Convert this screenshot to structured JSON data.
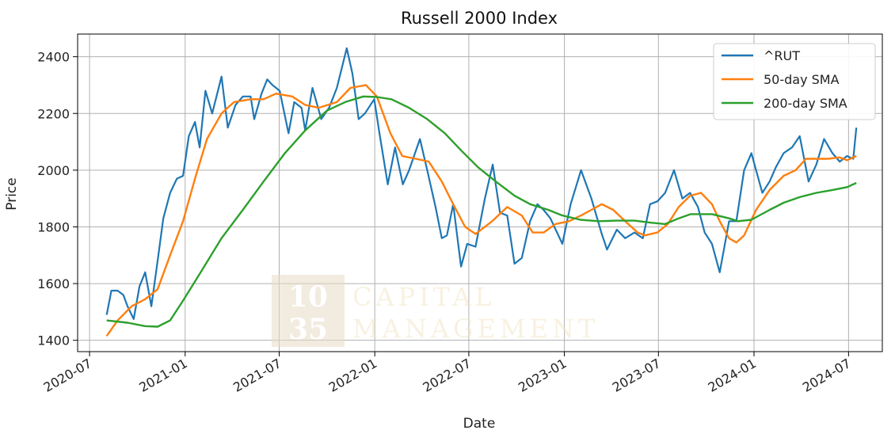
{
  "chart_data": {
    "type": "line",
    "title": "Russell 2000 Index",
    "xlabel": "Date",
    "ylabel": "Price",
    "ylim": [
      1360,
      2480
    ],
    "xlim": [
      "2020-06-08",
      "2024-09-04"
    ],
    "y_ticks": [
      1400,
      1600,
      1800,
      2000,
      2200,
      2400
    ],
    "x_ticks": [
      "2020-07",
      "2021-01",
      "2021-07",
      "2022-01",
      "2022-07",
      "2023-01",
      "2023-07",
      "2024-01",
      "2024-07"
    ],
    "grid": true,
    "legend_position": "top-right",
    "series": [
      {
        "name": "^RUT",
        "color": "#1f77b4",
        "points": [
          [
            "2020-08-03",
            1490
          ],
          [
            "2020-08-12",
            1575
          ],
          [
            "2020-08-24",
            1575
          ],
          [
            "2020-09-04",
            1560
          ],
          [
            "2020-09-12",
            1520
          ],
          [
            "2020-09-24",
            1475
          ],
          [
            "2020-10-05",
            1590
          ],
          [
            "2020-10-16",
            1640
          ],
          [
            "2020-10-28",
            1520
          ],
          [
            "2020-11-09",
            1680
          ],
          [
            "2020-11-20",
            1830
          ],
          [
            "2020-12-03",
            1920
          ],
          [
            "2020-12-16",
            1970
          ],
          [
            "2020-12-28",
            1980
          ],
          [
            "2021-01-08",
            2120
          ],
          [
            "2021-01-20",
            2170
          ],
          [
            "2021-01-29",
            2080
          ],
          [
            "2021-02-09",
            2280
          ],
          [
            "2021-02-22",
            2200
          ],
          [
            "2021-03-12",
            2330
          ],
          [
            "2021-03-24",
            2150
          ],
          [
            "2021-04-08",
            2230
          ],
          [
            "2021-04-22",
            2260
          ],
          [
            "2021-05-07",
            2260
          ],
          [
            "2021-05-14",
            2180
          ],
          [
            "2021-05-28",
            2270
          ],
          [
            "2021-06-08",
            2320
          ],
          [
            "2021-06-18",
            2300
          ],
          [
            "2021-07-02",
            2280
          ],
          [
            "2021-07-19",
            2130
          ],
          [
            "2021-07-30",
            2240
          ],
          [
            "2021-08-13",
            2220
          ],
          [
            "2021-08-20",
            2140
          ],
          [
            "2021-09-03",
            2290
          ],
          [
            "2021-09-20",
            2180
          ],
          [
            "2021-10-05",
            2220
          ],
          [
            "2021-10-20",
            2290
          ],
          [
            "2021-11-08",
            2430
          ],
          [
            "2021-11-19",
            2340
          ],
          [
            "2021-12-01",
            2180
          ],
          [
            "2021-12-13",
            2200
          ],
          [
            "2021-12-31",
            2250
          ],
          [
            "2022-01-10",
            2130
          ],
          [
            "2022-01-26",
            1950
          ],
          [
            "2022-02-09",
            2080
          ],
          [
            "2022-02-24",
            1950
          ],
          [
            "2022-03-08",
            2000
          ],
          [
            "2022-03-29",
            2110
          ],
          [
            "2022-04-12",
            2000
          ],
          [
            "2022-04-28",
            1870
          ],
          [
            "2022-05-10",
            1760
          ],
          [
            "2022-05-20",
            1770
          ],
          [
            "2022-06-01",
            1880
          ],
          [
            "2022-06-16",
            1660
          ],
          [
            "2022-06-28",
            1740
          ],
          [
            "2022-07-14",
            1730
          ],
          [
            "2022-08-01",
            1900
          ],
          [
            "2022-08-16",
            2020
          ],
          [
            "2022-08-30",
            1850
          ],
          [
            "2022-09-13",
            1840
          ],
          [
            "2022-09-27",
            1670
          ],
          [
            "2022-10-11",
            1690
          ],
          [
            "2022-10-27",
            1820
          ],
          [
            "2022-11-10",
            1880
          ],
          [
            "2022-11-22",
            1860
          ],
          [
            "2022-12-05",
            1830
          ],
          [
            "2022-12-28",
            1740
          ],
          [
            "2023-01-13",
            1880
          ],
          [
            "2023-02-02",
            2000
          ],
          [
            "2023-02-22",
            1900
          ],
          [
            "2023-03-13",
            1780
          ],
          [
            "2023-03-24",
            1720
          ],
          [
            "2023-04-12",
            1790
          ],
          [
            "2023-04-28",
            1760
          ],
          [
            "2023-05-16",
            1780
          ],
          [
            "2023-06-01",
            1760
          ],
          [
            "2023-06-15",
            1880
          ],
          [
            "2023-06-29",
            1890
          ],
          [
            "2023-07-14",
            1920
          ],
          [
            "2023-07-31",
            2000
          ],
          [
            "2023-08-16",
            1900
          ],
          [
            "2023-08-31",
            1920
          ],
          [
            "2023-09-15",
            1870
          ],
          [
            "2023-09-28",
            1780
          ],
          [
            "2023-10-12",
            1740
          ],
          [
            "2023-10-27",
            1640
          ],
          [
            "2023-11-14",
            1820
          ],
          [
            "2023-11-28",
            1820
          ],
          [
            "2023-12-13",
            2000
          ],
          [
            "2023-12-27",
            2060
          ],
          [
            "2024-01-17",
            1920
          ],
          [
            "2024-01-31",
            1960
          ],
          [
            "2024-02-12",
            2010
          ],
          [
            "2024-02-27",
            2060
          ],
          [
            "2024-03-14",
            2080
          ],
          [
            "2024-03-29",
            2120
          ],
          [
            "2024-04-15",
            1960
          ],
          [
            "2024-04-30",
            2020
          ],
          [
            "2024-05-15",
            2110
          ],
          [
            "2024-05-31",
            2060
          ],
          [
            "2024-06-14",
            2030
          ],
          [
            "2024-06-28",
            2050
          ],
          [
            "2024-07-10",
            2040
          ],
          [
            "2024-07-16",
            2150
          ]
        ]
      },
      {
        "name": "50-day SMA",
        "color": "#ff7f0e",
        "points": [
          [
            "2020-08-03",
            1415
          ],
          [
            "2020-08-24",
            1470
          ],
          [
            "2020-09-20",
            1520
          ],
          [
            "2020-10-16",
            1545
          ],
          [
            "2020-11-09",
            1580
          ],
          [
            "2020-12-03",
            1700
          ],
          [
            "2020-12-28",
            1820
          ],
          [
            "2021-01-20",
            1970
          ],
          [
            "2021-02-12",
            2110
          ],
          [
            "2021-03-12",
            2200
          ],
          [
            "2021-04-05",
            2240
          ],
          [
            "2021-05-07",
            2250
          ],
          [
            "2021-06-01",
            2250
          ],
          [
            "2021-06-25",
            2270
          ],
          [
            "2021-07-26",
            2260
          ],
          [
            "2021-08-20",
            2230
          ],
          [
            "2021-09-15",
            2220
          ],
          [
            "2021-10-20",
            2240
          ],
          [
            "2021-11-15",
            2290
          ],
          [
            "2021-12-15",
            2300
          ],
          [
            "2022-01-05",
            2260
          ],
          [
            "2022-01-31",
            2130
          ],
          [
            "2022-02-23",
            2050
          ],
          [
            "2022-03-21",
            2040
          ],
          [
            "2022-04-15",
            2030
          ],
          [
            "2022-05-10",
            1960
          ],
          [
            "2022-06-01",
            1880
          ],
          [
            "2022-06-24",
            1800
          ],
          [
            "2022-07-14",
            1775
          ],
          [
            "2022-08-15",
            1820
          ],
          [
            "2022-09-13",
            1870
          ],
          [
            "2022-10-11",
            1840
          ],
          [
            "2022-11-01",
            1780
          ],
          [
            "2022-11-22",
            1780
          ],
          [
            "2022-12-15",
            1810
          ],
          [
            "2023-01-10",
            1820
          ],
          [
            "2023-02-02",
            1840
          ],
          [
            "2023-02-22",
            1860
          ],
          [
            "2023-03-14",
            1880
          ],
          [
            "2023-04-05",
            1860
          ],
          [
            "2023-04-28",
            1820
          ],
          [
            "2023-05-22",
            1780
          ],
          [
            "2023-06-05",
            1770
          ],
          [
            "2023-06-29",
            1780
          ],
          [
            "2023-07-19",
            1810
          ],
          [
            "2023-08-09",
            1870
          ],
          [
            "2023-08-31",
            1910
          ],
          [
            "2023-09-21",
            1920
          ],
          [
            "2023-10-12",
            1880
          ],
          [
            "2023-10-27",
            1820
          ],
          [
            "2023-11-14",
            1760
          ],
          [
            "2023-11-28",
            1745
          ],
          [
            "2023-12-13",
            1770
          ],
          [
            "2024-01-05",
            1860
          ],
          [
            "2024-01-31",
            1930
          ],
          [
            "2024-02-27",
            1980
          ],
          [
            "2024-03-21",
            2000
          ],
          [
            "2024-04-10",
            2040
          ],
          [
            "2024-04-30",
            2040
          ],
          [
            "2024-05-22",
            2040
          ],
          [
            "2024-06-14",
            2045
          ],
          [
            "2024-06-28",
            2035
          ],
          [
            "2024-07-16",
            2050
          ]
        ]
      },
      {
        "name": "200-day SMA",
        "color": "#2ca02c",
        "points": [
          [
            "2020-08-03",
            1470
          ],
          [
            "2020-09-12",
            1462
          ],
          [
            "2020-10-16",
            1450
          ],
          [
            "2020-11-09",
            1448
          ],
          [
            "2020-12-03",
            1470
          ],
          [
            "2020-12-28",
            1540
          ],
          [
            "2021-01-31",
            1640
          ],
          [
            "2021-03-12",
            1760
          ],
          [
            "2021-04-22",
            1860
          ],
          [
            "2021-06-01",
            1960
          ],
          [
            "2021-07-12",
            2060
          ],
          [
            "2021-08-20",
            2140
          ],
          [
            "2021-10-01",
            2210
          ],
          [
            "2021-11-05",
            2240
          ],
          [
            "2021-12-10",
            2260
          ],
          [
            "2022-01-05",
            2258
          ],
          [
            "2022-02-02",
            2250
          ],
          [
            "2022-03-08",
            2220
          ],
          [
            "2022-04-12",
            2180
          ],
          [
            "2022-05-16",
            2130
          ],
          [
            "2022-06-16",
            2070
          ],
          [
            "2022-07-19",
            2010
          ],
          [
            "2022-08-22",
            1960
          ],
          [
            "2022-09-27",
            1910
          ],
          [
            "2022-10-27",
            1880
          ],
          [
            "2022-12-01",
            1860
          ],
          [
            "2022-12-28",
            1840
          ],
          [
            "2023-02-01",
            1825
          ],
          [
            "2023-03-08",
            1820
          ],
          [
            "2023-04-12",
            1822
          ],
          [
            "2023-05-16",
            1822
          ],
          [
            "2023-06-15",
            1815
          ],
          [
            "2023-07-14",
            1810
          ],
          [
            "2023-08-09",
            1830
          ],
          [
            "2023-09-01",
            1845
          ],
          [
            "2023-10-12",
            1845
          ],
          [
            "2023-11-14",
            1830
          ],
          [
            "2023-12-01",
            1820
          ],
          [
            "2023-12-27",
            1825
          ],
          [
            "2024-01-31",
            1860
          ],
          [
            "2024-02-27",
            1885
          ],
          [
            "2024-03-29",
            1905
          ],
          [
            "2024-04-30",
            1920
          ],
          [
            "2024-05-31",
            1930
          ],
          [
            "2024-06-28",
            1940
          ],
          [
            "2024-07-16",
            1955
          ]
        ]
      }
    ]
  },
  "watermark": {
    "box_line1": "10",
    "box_line2": "35",
    "text_line1": "CAPITAL",
    "text_line2": "MANAGEMENT"
  }
}
